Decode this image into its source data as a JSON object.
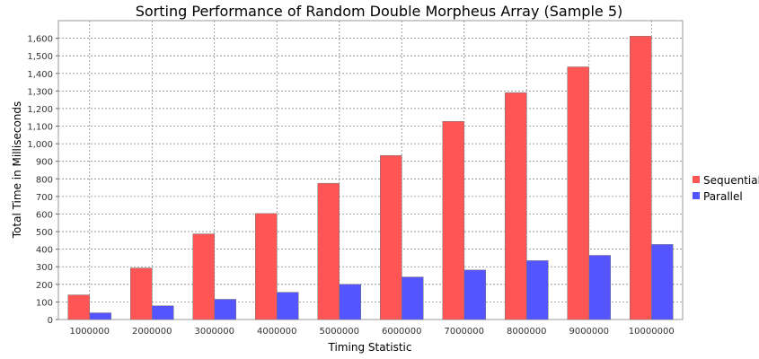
{
  "chart_data": {
    "type": "bar",
    "title": "Sorting Performance of Random Double Morpheus Array (Sample 5)",
    "xlabel": "Timing Statistic",
    "ylabel": "Total Time in Milliseconds",
    "categories": [
      "1000000",
      "2000000",
      "3000000",
      "4000000",
      "5000000",
      "6000000",
      "7000000",
      "8000000",
      "9000000",
      "10000000"
    ],
    "series": [
      {
        "name": "Sequential",
        "color": "#ff5555",
        "values": [
          140,
          293,
          487,
          603,
          775,
          933,
          1127,
          1290,
          1437,
          1612
        ]
      },
      {
        "name": "Parallel",
        "color": "#5555ff",
        "values": [
          38,
          78,
          115,
          155,
          200,
          242,
          282,
          335,
          365,
          427
        ]
      }
    ],
    "ylim": [
      0,
      1700
    ],
    "yticks": [
      0,
      100,
      200,
      300,
      400,
      500,
      600,
      700,
      800,
      900,
      1000,
      1100,
      1200,
      1300,
      1400,
      1500,
      1600
    ],
    "ytick_labels": [
      "0",
      "100",
      "200",
      "300",
      "400",
      "500",
      "600",
      "700",
      "800",
      "900",
      "1,000",
      "1,100",
      "1,200",
      "1,300",
      "1,400",
      "1,500",
      "1,600"
    ],
    "grid": true,
    "legend_position": "right"
  }
}
